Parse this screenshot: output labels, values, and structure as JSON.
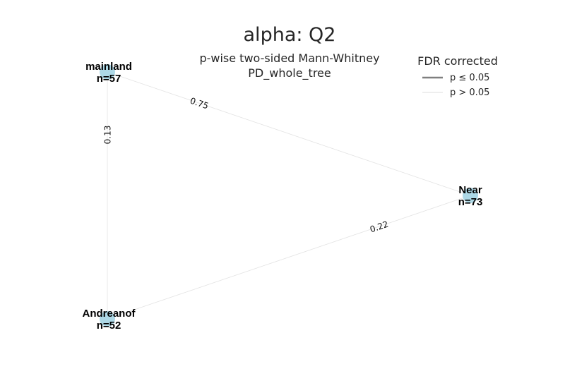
{
  "figure": {
    "title": "alpha: Q2",
    "subtitle_line1": "p-wise two-sided Mann-Whitney",
    "subtitle_line2": "PD_whole_tree"
  },
  "legend": {
    "title": "FDR corrected",
    "items": [
      {
        "label": "p ≤ 0.05",
        "color": "#7f7f7f"
      },
      {
        "label": "p > 0.05",
        "color": "#e3e3e3"
      }
    ]
  },
  "graph": {
    "node_color": "#add8e6",
    "nodes": [
      {
        "id": "mainland",
        "name": "mainland",
        "n_label": "n=57"
      },
      {
        "id": "near",
        "name": "Near",
        "n_label": "n=73"
      },
      {
        "id": "andreanof",
        "name": "Andreanof",
        "n_label": "n=52"
      }
    ],
    "edges": [
      {
        "source": "mainland",
        "target": "near",
        "p_label": "0.75",
        "significant": false
      },
      {
        "source": "mainland",
        "target": "andreanof",
        "p_label": "0.13",
        "significant": false
      },
      {
        "source": "andreanof",
        "target": "near",
        "p_label": "0.22",
        "significant": false
      }
    ]
  }
}
